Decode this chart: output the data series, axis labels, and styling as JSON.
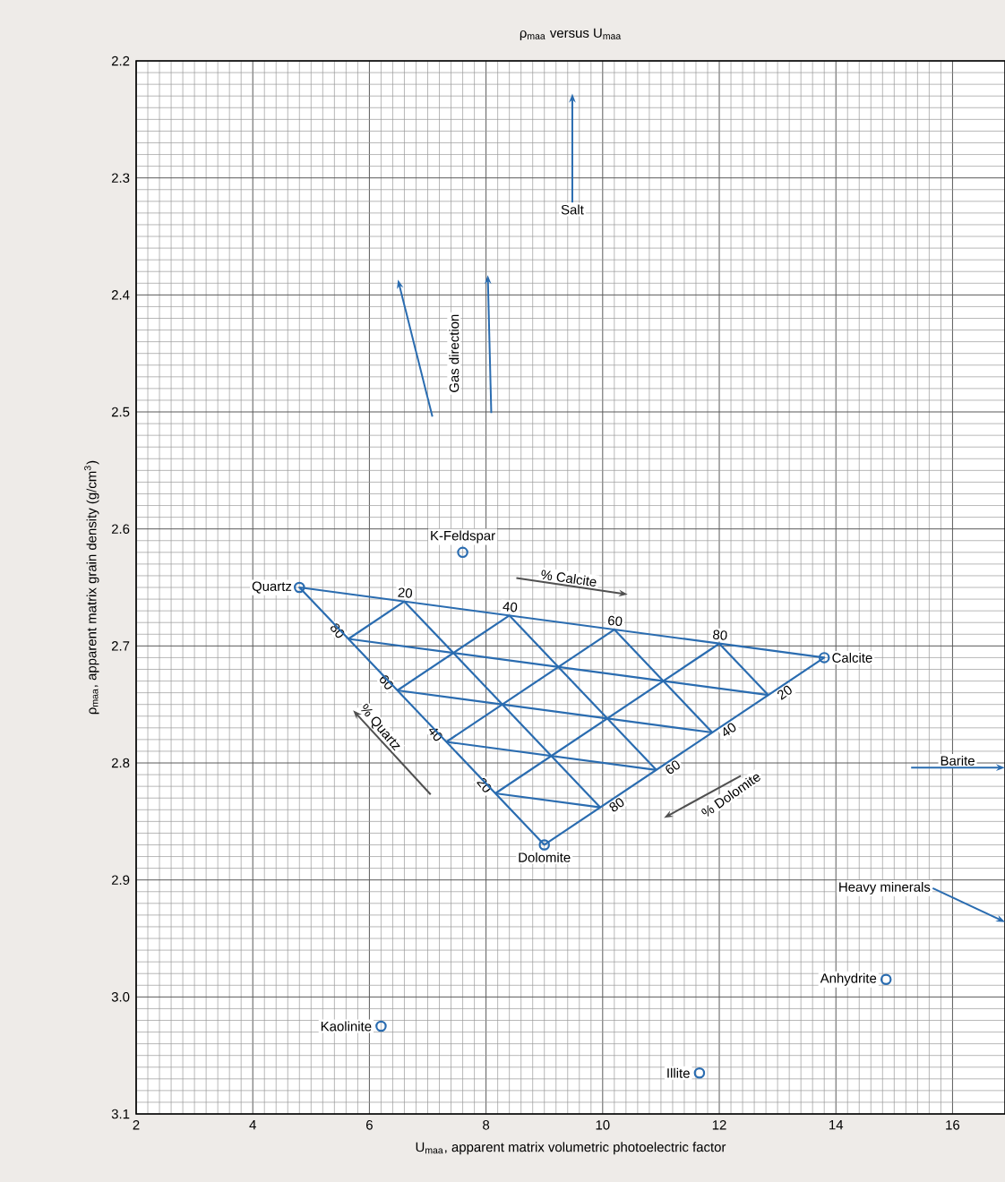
{
  "chart_data": {
    "type": "scatter",
    "title": "ρ$_{maa}$ versus U$_{maa}$",
    "xlabel": "U$_{maa}$, apparent matrix volumetric photoelectric factor",
    "ylabel": "ρ$_{maa}$, apparent matrix grain density (g/cm$^{3}$)",
    "xlim": [
      2,
      16.9
    ],
    "ylim": [
      3.1,
      2.2
    ],
    "xticks": [
      2,
      4,
      6,
      8,
      10,
      12,
      14,
      16
    ],
    "yticks": [
      2.2,
      2.3,
      2.4,
      2.5,
      2.6,
      2.7,
      2.8,
      2.9,
      {
        "value": 3.0,
        "label": "3.0"
      },
      3.1
    ],
    "grid": true,
    "marker": "circle",
    "series": [
      {
        "color": "#2a6cb0",
        "x": [
          4.8,
          13.8,
          9.0,
          7.6,
          6.2,
          11.66,
          14.86
        ],
        "values": [
          2.65,
          2.71,
          2.87,
          2.62,
          3.025,
          3.065,
          2.985
        ]
      }
    ],
    "annotations": [
      {
        "text": "Quartz",
        "x": 4.8,
        "y": 2.65
      },
      {
        "text": "Calcite",
        "x": 13.8,
        "y": 2.71
      },
      {
        "text": "Dolomite",
        "x": 9.0,
        "y": 2.87
      },
      {
        "text": "K-Feldspar",
        "x": 7.6,
        "y": 2.62
      },
      {
        "text": "Kaolinite",
        "x": 6.2,
        "y": 3.025
      },
      {
        "text": "Illite",
        "x": 11.66,
        "y": 3.065
      },
      {
        "text": "Anhydrite",
        "x": 14.86,
        "y": 2.985
      },
      "Salt",
      "Gas direction",
      "Barite",
      "Heavy minerals",
      "20",
      "40",
      "60",
      "80",
      "80",
      "60",
      "40",
      "20",
      "20",
      "40",
      "60",
      "80",
      "% Calcite",
      "% Quartz",
      "% Dolomite"
    ]
  }
}
